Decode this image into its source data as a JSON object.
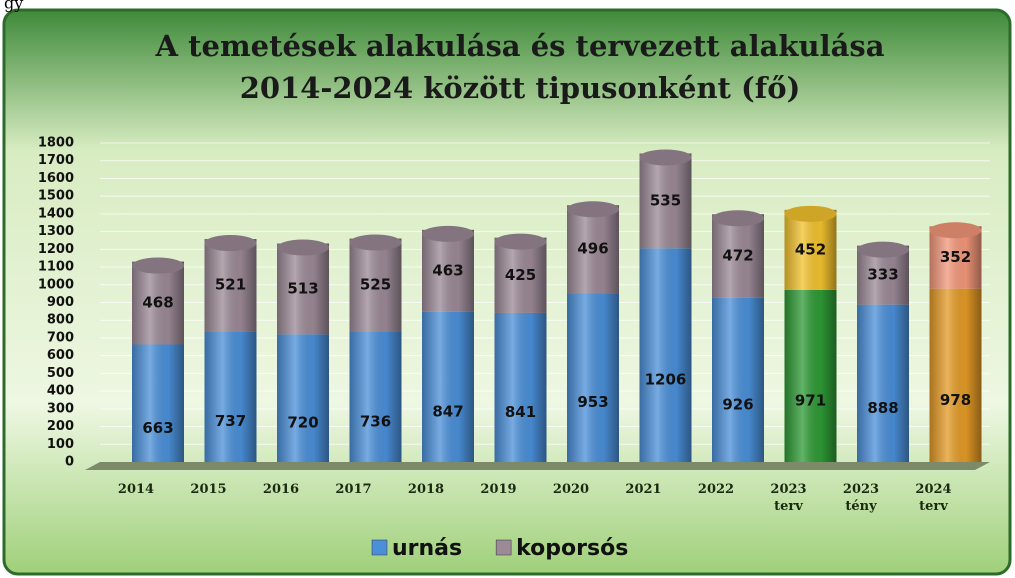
{
  "caption": "gy",
  "chart_data": {
    "type": "bar",
    "stacked": true,
    "title": [
      "A temetések alakulása és tervezett alakulása",
      "2014-2024 között  tipusonként (fő)"
    ],
    "categories": [
      "2014",
      "2015",
      "2016",
      "2017",
      "2018",
      "2019",
      "2020",
      "2021",
      "2022",
      "2023 terv",
      "2023 tény",
      "2024 terv"
    ],
    "series": [
      {
        "name": "urnás",
        "color": "#4a8fd8",
        "colors": [
          "#4a8fd8",
          "#4a8fd8",
          "#4a8fd8",
          "#4a8fd8",
          "#4a8fd8",
          "#4a8fd8",
          "#4a8fd8",
          "#4a8fd8",
          "#4a8fd8",
          "#2e9a35",
          "#4a8fd8",
          "#e39a25"
        ],
        "values": [
          663,
          737,
          720,
          736,
          847,
          841,
          953,
          1206,
          926,
          971,
          888,
          978
        ]
      },
      {
        "name": "koporsós",
        "color": "#9b8996",
        "colors": [
          "#9b8996",
          "#9b8996",
          "#9b8996",
          "#9b8996",
          "#9b8996",
          "#9b8996",
          "#9b8996",
          "#9b8996",
          "#9b8996",
          "#f2c22e",
          "#9b8996",
          "#f2977a"
        ],
        "values": [
          468,
          521,
          513,
          525,
          463,
          425,
          496,
          535,
          472,
          452,
          333,
          352
        ]
      }
    ],
    "ylim": [
      0,
      1800
    ],
    "yticks": [
      0,
      100,
      200,
      300,
      400,
      500,
      600,
      700,
      800,
      900,
      1000,
      1100,
      1200,
      1300,
      1400,
      1500,
      1600,
      1700,
      1800
    ],
    "grid": true,
    "legend": "bottom"
  }
}
